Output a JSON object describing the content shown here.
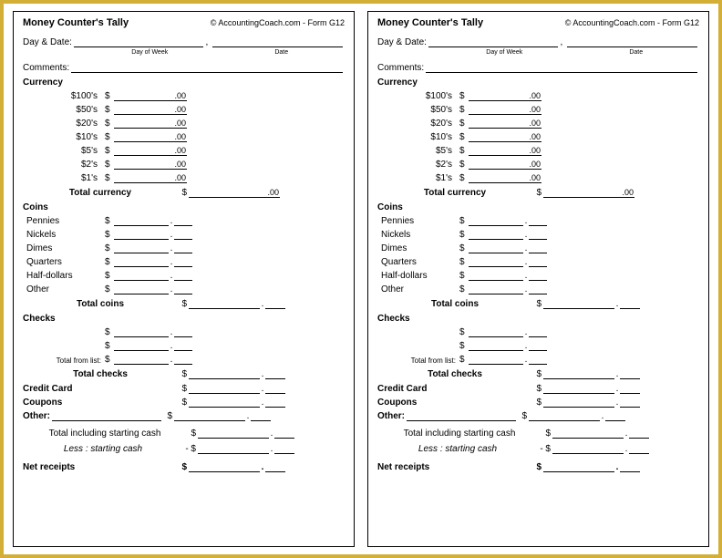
{
  "title": "Money Counter's Tally",
  "copyright": "© AccountingCoach.com - Form G12",
  "dayDateLabel": "Day & Date:",
  "dayOfWeek": "Day of Week",
  "dateLabel": "Date",
  "commentsLabel": "Comments:",
  "currency": {
    "heading": "Currency",
    "denoms": [
      "$100's",
      "$50's",
      "$20's",
      "$10's",
      "$5's",
      "$2's",
      "$1's"
    ],
    "suffix": ".00",
    "totalLabel": "Total currency",
    "totalSuffix": ".00"
  },
  "coins": {
    "heading": "Coins",
    "items": [
      "Pennies",
      "Nickels",
      "Dimes",
      "Quarters",
      "Half-dollars",
      "Other"
    ],
    "totalLabel": "Total coins"
  },
  "checks": {
    "heading": "Checks",
    "totalFromList": "Total from list:",
    "totalLabel": "Total checks"
  },
  "creditCard": "Credit Card",
  "coupons": "Coupons",
  "other": "Other:",
  "totalIncl": "Total including starting cash",
  "lessStarting": "Less : starting cash",
  "netReceipts": "Net receipts",
  "minus": "- $",
  "dollar": "$"
}
